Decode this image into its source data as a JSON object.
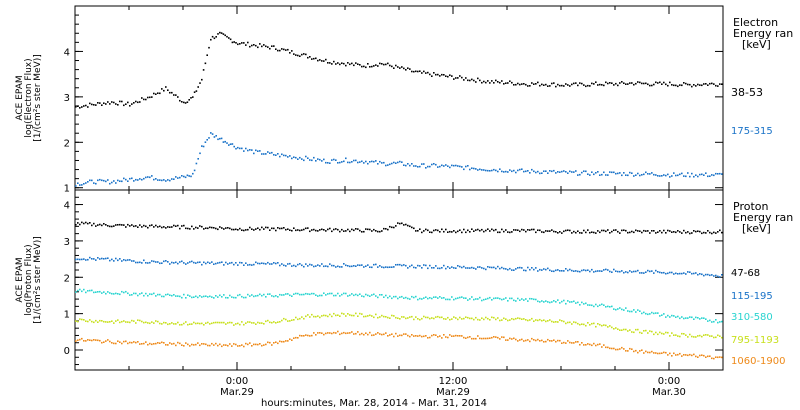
{
  "colors": {
    "black": "#000000",
    "blue": "#1a73c8",
    "cyan": "#2ad4d0",
    "yellowgreen": "#c8e01e",
    "orange": "#ee8a1a"
  },
  "xaxis": {
    "title": "hours:minutes, Mar. 28, 2014 - Mar. 31, 2014",
    "range_hours": [
      -9,
      27
    ],
    "ticks": [
      {
        "hour": -9,
        "label": "",
        "sub": ""
      },
      {
        "hour": -6,
        "label": "",
        "sub": ""
      },
      {
        "hour": -3,
        "label": "",
        "sub": ""
      },
      {
        "hour": 0,
        "label": "0:00",
        "sub": "Mar.29"
      },
      {
        "hour": 3,
        "label": "",
        "sub": ""
      },
      {
        "hour": 6,
        "label": "",
        "sub": ""
      },
      {
        "hour": 9,
        "label": "",
        "sub": ""
      },
      {
        "hour": 12,
        "label": "12:00",
        "sub": "Mar.29"
      },
      {
        "hour": 15,
        "label": "",
        "sub": ""
      },
      {
        "hour": 18,
        "label": "",
        "sub": ""
      },
      {
        "hour": 21,
        "label": "",
        "sub": ""
      },
      {
        "hour": 24,
        "label": "0:00",
        "sub": "Mar.30"
      },
      {
        "hour": 27,
        "label": "",
        "sub": ""
      }
    ]
  },
  "chart_data": [
    {
      "type": "scatter",
      "panel": "electron",
      "ylabel": [
        "ACE EPAM",
        "log(Electron Flux)",
        "[1/(cm²s ster MeV)]"
      ],
      "ylim": [
        0.95,
        5.0
      ],
      "yticks": [
        1,
        2,
        3,
        4
      ],
      "legend_title": [
        "Electron",
        "Energy ran",
        "[keV]"
      ],
      "series": [
        {
          "name": "38-53",
          "color": "black",
          "x": [
            -9,
            -8,
            -7,
            -6,
            -5,
            -4,
            -3,
            -2.5,
            -2,
            -1.5,
            -1,
            -0.5,
            0,
            1,
            2,
            3,
            4,
            5,
            6,
            7,
            8,
            9,
            10,
            11,
            12,
            13,
            14,
            15,
            16,
            17,
            18,
            19,
            20,
            21,
            22,
            23,
            24,
            25,
            26,
            27
          ],
          "y": [
            2.8,
            2.85,
            2.9,
            2.85,
            3.0,
            3.2,
            2.9,
            3.0,
            3.4,
            4.3,
            4.4,
            4.3,
            4.2,
            4.15,
            4.1,
            4.0,
            3.9,
            3.8,
            3.75,
            3.7,
            3.75,
            3.65,
            3.55,
            3.5,
            3.45,
            3.4,
            3.35,
            3.33,
            3.3,
            3.3,
            3.28,
            3.28,
            3.3,
            3.3,
            3.32,
            3.3,
            3.3,
            3.28,
            3.3,
            3.3
          ]
        },
        {
          "name": "175-315",
          "color": "blue",
          "x": [
            -9,
            -8,
            -7,
            -6,
            -5,
            -4,
            -3,
            -2.5,
            -2,
            -1.5,
            -1,
            -0.5,
            0,
            1,
            2,
            3,
            4,
            5,
            6,
            7,
            8,
            9,
            10,
            11,
            12,
            13,
            14,
            15,
            16,
            17,
            18,
            19,
            20,
            21,
            22,
            23,
            24,
            25,
            26,
            27
          ],
          "y": [
            1.1,
            1.15,
            1.15,
            1.2,
            1.25,
            1.2,
            1.25,
            1.3,
            1.9,
            2.2,
            2.1,
            2.0,
            1.9,
            1.8,
            1.75,
            1.7,
            1.65,
            1.6,
            1.62,
            1.6,
            1.55,
            1.55,
            1.5,
            1.5,
            1.48,
            1.45,
            1.42,
            1.4,
            1.38,
            1.37,
            1.35,
            1.34,
            1.33,
            1.33,
            1.32,
            1.32,
            1.3,
            1.3,
            1.3,
            1.3
          ]
        }
      ]
    },
    {
      "type": "scatter",
      "panel": "proton",
      "ylabel": [
        "ACE EPAM",
        "log(Proton Flux)",
        "[1/(cm²s ster MeV)]"
      ],
      "ylim": [
        -0.55,
        4.4
      ],
      "yticks": [
        0,
        1,
        2,
        3,
        4
      ],
      "legend_title": [
        "Proton",
        "Energy ran",
        "[keV]"
      ],
      "series": [
        {
          "name": "47-68",
          "color": "black",
          "x": [
            -9,
            -7,
            -5,
            -3,
            -1,
            0,
            2,
            4,
            6,
            8,
            9,
            10,
            12,
            14,
            16,
            18,
            20,
            22,
            24,
            26,
            27
          ],
          "y": [
            3.5,
            3.45,
            3.42,
            3.4,
            3.38,
            3.35,
            3.35,
            3.33,
            3.32,
            3.3,
            3.5,
            3.3,
            3.3,
            3.3,
            3.3,
            3.28,
            3.28,
            3.28,
            3.27,
            3.27,
            3.27
          ]
        },
        {
          "name": "115-195",
          "color": "blue",
          "x": [
            -9,
            -7,
            -5,
            -3,
            -1,
            0,
            2,
            4,
            6,
            8,
            10,
            12,
            14,
            16,
            18,
            20,
            22,
            24,
            26,
            27
          ],
          "y": [
            2.55,
            2.5,
            2.45,
            2.42,
            2.4,
            2.4,
            2.38,
            2.35,
            2.35,
            2.33,
            2.32,
            2.3,
            2.28,
            2.25,
            2.22,
            2.2,
            2.18,
            2.15,
            2.1,
            2.05
          ]
        },
        {
          "name": "310-580",
          "color": "cyan",
          "x": [
            -9,
            -7,
            -5,
            -3,
            -1,
            0,
            2,
            4,
            6,
            8,
            10,
            12,
            14,
            16,
            18,
            20,
            22,
            24,
            26,
            27
          ],
          "y": [
            1.65,
            1.6,
            1.55,
            1.5,
            1.5,
            1.5,
            1.52,
            1.55,
            1.55,
            1.5,
            1.45,
            1.45,
            1.42,
            1.4,
            1.35,
            1.25,
            1.1,
            0.95,
            0.85,
            0.8
          ]
        },
        {
          "name": "795-1193",
          "color": "yellowgreen",
          "x": [
            -9,
            -7,
            -5,
            -3,
            -1,
            0,
            2,
            4,
            6,
            8,
            10,
            12,
            14,
            16,
            18,
            20,
            22,
            24,
            26,
            27
          ],
          "y": [
            0.85,
            0.8,
            0.8,
            0.75,
            0.75,
            0.75,
            0.8,
            0.95,
            1.0,
            0.95,
            0.9,
            0.9,
            0.88,
            0.85,
            0.8,
            0.7,
            0.55,
            0.45,
            0.4,
            0.4
          ]
        },
        {
          "name": "1060-1900",
          "color": "orange",
          "x": [
            -9,
            -7,
            -5,
            -3,
            -1,
            0,
            2,
            4,
            6,
            8,
            10,
            12,
            14,
            16,
            18,
            20,
            22,
            24,
            26,
            27
          ],
          "y": [
            0.3,
            0.25,
            0.2,
            0.18,
            0.15,
            0.15,
            0.2,
            0.45,
            0.5,
            0.45,
            0.4,
            0.4,
            0.35,
            0.3,
            0.25,
            0.15,
            0.0,
            -0.1,
            -0.15,
            -0.2
          ]
        }
      ]
    }
  ]
}
